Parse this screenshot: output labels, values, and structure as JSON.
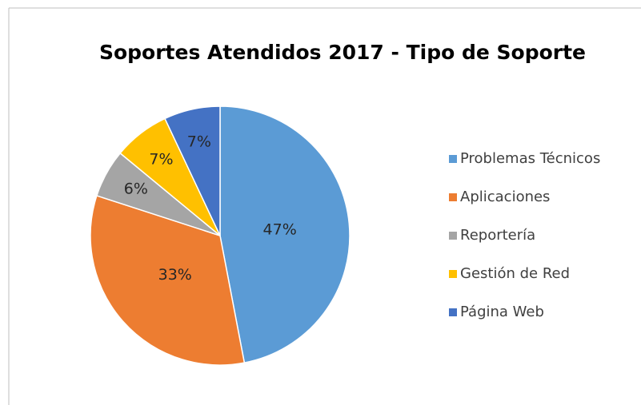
{
  "chart_data": {
    "type": "pie",
    "title": "Soportes Atendidos 2017 - Tipo de Soporte",
    "categories": [
      "Problemas Técnicos",
      "Aplicaciones",
      "Reportería",
      "Gestión de Red",
      "Página Web"
    ],
    "values": [
      47,
      33,
      6,
      7,
      7
    ],
    "value_labels": [
      "47%",
      "33%",
      "6%",
      "7%",
      "7%"
    ],
    "colors": [
      "#5b9bd5",
      "#ed7d31",
      "#a5a5a5",
      "#ffc000",
      "#4472c4"
    ],
    "legend": "right"
  }
}
